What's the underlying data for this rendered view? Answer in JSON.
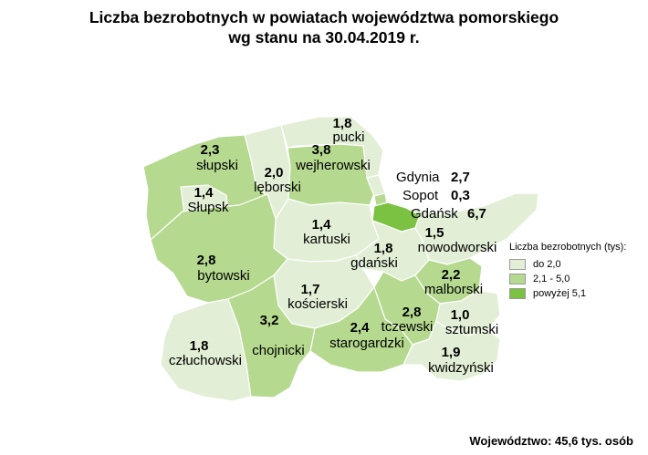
{
  "title": {
    "line1": "Liczba bezrobotnych w powiatach województwa pomorskiego",
    "line2": "wg stanu na 30.04.2019 r."
  },
  "colors": {
    "low": "#e2efd6",
    "mid": "#b5d98f",
    "high": "#7bc142"
  },
  "regions": {
    "slupski": {
      "name": "słupski",
      "value": "2,3"
    },
    "slupsk": {
      "name": "Słupsk",
      "value": "1,4"
    },
    "leborski": {
      "name": "lęborski",
      "value": "2,0"
    },
    "pucki": {
      "name": "pucki",
      "value": "1,8"
    },
    "wejherowski": {
      "name": "wejherowski",
      "value": "3,8"
    },
    "gdynia": {
      "name": "Gdynia",
      "value": "2,7"
    },
    "sopot": {
      "name": "Sopot",
      "value": "0,3"
    },
    "gdansk": {
      "name": "Gdańsk",
      "value": "6,7"
    },
    "nowodworski": {
      "name": "nowodworski",
      "value": "1,5"
    },
    "kartuski": {
      "name": "kartuski",
      "value": "1,4"
    },
    "gdanski": {
      "name": "gdański",
      "value": "1,8"
    },
    "bytowski": {
      "name": "bytowski",
      "value": "2,8"
    },
    "koscierski": {
      "name": "kościerski",
      "value": "1,7"
    },
    "malborski": {
      "name": "malborski",
      "value": "2,2"
    },
    "tczewski": {
      "name": "tczewski",
      "value": "2,8"
    },
    "sztumski": {
      "name": "sztumski",
      "value": "1,0"
    },
    "starogardzki": {
      "name": "starogardzki",
      "value": "2,4"
    },
    "czluchowski": {
      "name": "człuchowski",
      "value": "1,8"
    },
    "chojnicki": {
      "name": "chojnicki",
      "value": "3,2"
    },
    "kwidzynski": {
      "name": "kwidzyński",
      "value": "1,9"
    }
  },
  "legend": {
    "title": "Liczba bezrobotnych (tys):",
    "items": [
      {
        "label": "do 2,0",
        "color": "#e2efd6"
      },
      {
        "label": "2,1 - 5,0",
        "color": "#b5d98f"
      },
      {
        "label": "powyżej 5,1",
        "color": "#7bc142"
      }
    ]
  },
  "footer": "Województwo: 45,6 tys. osób"
}
